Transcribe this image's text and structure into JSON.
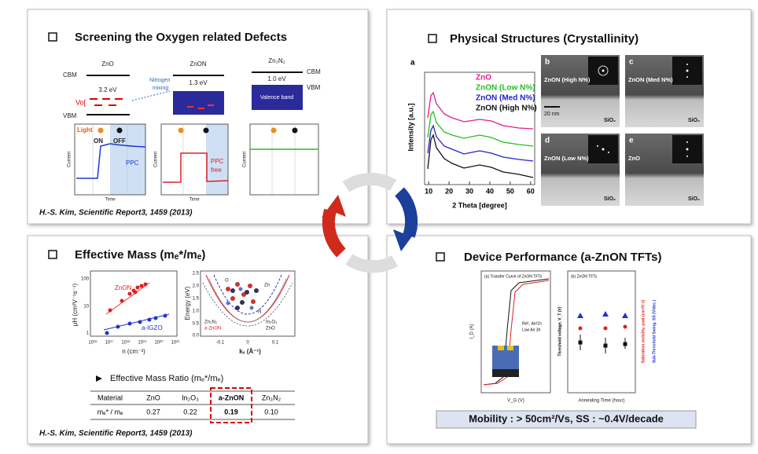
{
  "panels": [
    {
      "title": "Screening the Oxygen related Defects",
      "band": {
        "materials": [
          "ZnO",
          "ZnON",
          "Zn₃N₂"
        ],
        "cbm": "CBM",
        "vbm": "VBM",
        "gaps": [
          "3.2 eV",
          "1.3 eV",
          "1.0 eV"
        ],
        "vo": "Vo[",
        "mixing": [
          "Nitrogen",
          "mixing"
        ],
        "valence": "Valence band"
      },
      "current": {
        "light": "Light",
        "on": "ON",
        "off": "OFF",
        "ppc": "PPC",
        "ppc_free": [
          "PPC",
          "free"
        ],
        "ylabel": "Current",
        "xlabel": "Time"
      },
      "citation": "H.-S. Kim, Scientific Report3, 1459 (2013)"
    },
    {
      "title": "Physical Structures (Crystallinity)",
      "xrd": {
        "panel_label": "a",
        "ylabel": "Intensity [a.u.]",
        "xlabel": "2 Theta [degree]",
        "xlim": [
          8,
          62
        ],
        "xticks": [
          10,
          20,
          30,
          40,
          50,
          60
        ],
        "legend": [
          {
            "name": "ZnO",
            "color": "#e0208a"
          },
          {
            "name": "ZnON (Low N%)",
            "color": "#22c022"
          },
          {
            "name": "ZnON (Med N%)",
            "color": "#2323c8"
          },
          {
            "name": "ZnON (High N%)",
            "color": "#111111"
          }
        ]
      },
      "tem": [
        {
          "label": "b",
          "sample": "ZnON (High N%)",
          "substrate": "SiO₂",
          "scale": "20 nm"
        },
        {
          "label": "c",
          "sample": "ZnON (Med N%)",
          "substrate": "SiO₂"
        },
        {
          "label": "d",
          "sample": "ZnON (Low N%)",
          "substrate": "SiO₂"
        },
        {
          "label": "e",
          "sample": "ZnO",
          "substrate": "SiO₂"
        }
      ]
    },
    {
      "title": "Effective Mass (mₑ*/mₑ)",
      "mobility_plot": {
        "ylabel": "μH (cm²V⁻¹s⁻¹)",
        "xlabel": "n (cm⁻³)",
        "series": [
          "ZnON",
          "a-IGZO"
        ],
        "yticks": [
          "100",
          "10",
          "1"
        ],
        "xticks": [
          "10¹⁶",
          "10¹⁷",
          "10¹⁸",
          "10¹⁹",
          "10²⁰",
          "10²¹"
        ]
      },
      "energy_plot": {
        "ylabel": "Energy (eV)",
        "xlabel": "kₓ (Å⁻¹)",
        "atoms": [
          "O",
          "Zn",
          "N"
        ],
        "yticks": [
          "2.5",
          "2.0",
          "1.5",
          "1.0",
          "0.5",
          "0.0"
        ],
        "xticks": [
          "-0.1",
          "0",
          "0.1"
        ],
        "legend": [
          "Zn₃N₂",
          "a-ZnON",
          "In₂O₃",
          "ZnO"
        ]
      },
      "ratio_title": "Effective Mass Ratio (mₑ*/mₑ)",
      "table": {
        "header": [
          "Material",
          "ZnO",
          "In₂O₃",
          "a-ZnON",
          "Zn₃N₂"
        ],
        "rows": [
          [
            "mₑ* / mₑ",
            "0.27",
            "0.22",
            "0.19",
            "0.10"
          ]
        ]
      },
      "citation": "H.-S. Kim, Scientific Report3, 1459 (2013)"
    },
    {
      "title": "Device Performance (a-ZnON TFTs)",
      "transfer": {
        "caption": "(a) Transfer Curve of ZnON TFTs",
        "ylabel": "I_D (A)",
        "xlabel": "V_G (V)",
        "legend": [
          "Ref.: Air/1h",
          "Low Air 3h"
        ]
      },
      "anneal": {
        "caption": "(b) ZnON TFTs",
        "xlabel": "Annealing Time (hour)",
        "ylabels": [
          "Threshold voltage, V_T (V)",
          "Saturation mobility, μsat (cm²/V·s)",
          "Sub-Threshold Swing, SS (V/dec.)"
        ]
      },
      "summary": "Mobility :  > 50cm²/Vs, SS : ~0.4V/decade"
    }
  ]
}
